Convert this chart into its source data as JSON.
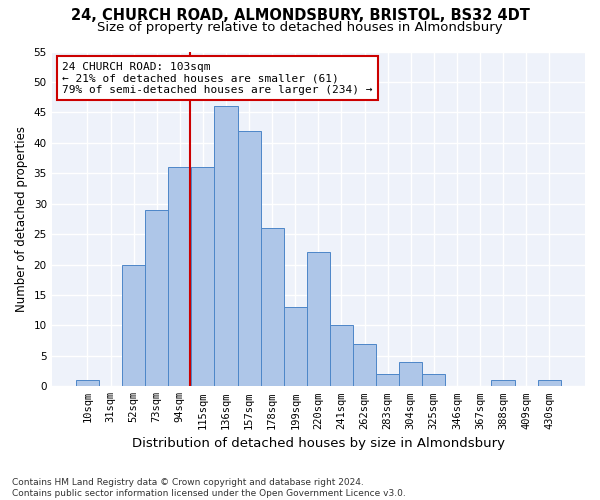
{
  "title1": "24, CHURCH ROAD, ALMONDSBURY, BRISTOL, BS32 4DT",
  "title2": "Size of property relative to detached houses in Almondsbury",
  "xlabel": "Distribution of detached houses by size in Almondsbury",
  "ylabel": "Number of detached properties",
  "footer": "Contains HM Land Registry data © Crown copyright and database right 2024.\nContains public sector information licensed under the Open Government Licence v3.0.",
  "bar_labels": [
    "10sqm",
    "31sqm",
    "52sqm",
    "73sqm",
    "94sqm",
    "115sqm",
    "136sqm",
    "157sqm",
    "178sqm",
    "199sqm",
    "220sqm",
    "241sqm",
    "262sqm",
    "283sqm",
    "304sqm",
    "325sqm",
    "346sqm",
    "367sqm",
    "388sqm",
    "409sqm",
    "430sqm"
  ],
  "bar_values": [
    1,
    0,
    20,
    29,
    36,
    36,
    46,
    42,
    26,
    13,
    22,
    10,
    7,
    2,
    4,
    2,
    0,
    0,
    1,
    0,
    1
  ],
  "bar_color": "#aec6e8",
  "bar_edge_color": "#4d86c8",
  "property_line_color": "#cc0000",
  "annotation_line1": "24 CHURCH ROAD: 103sqm",
  "annotation_line2": "← 21% of detached houses are smaller (61)",
  "annotation_line3": "79% of semi-detached houses are larger (234) →",
  "annotation_box_color": "#ffffff",
  "annotation_box_edge_color": "#cc0000",
  "ylim": [
    0,
    55
  ],
  "yticks": [
    0,
    5,
    10,
    15,
    20,
    25,
    30,
    35,
    40,
    45,
    50,
    55
  ],
  "bg_color": "#eef2fa",
  "grid_color": "#ffffff",
  "title1_fontsize": 10.5,
  "title2_fontsize": 9.5,
  "xlabel_fontsize": 9.5,
  "ylabel_fontsize": 8.5,
  "tick_fontsize": 7.5,
  "annotation_fontsize": 8,
  "footer_fontsize": 6.5
}
